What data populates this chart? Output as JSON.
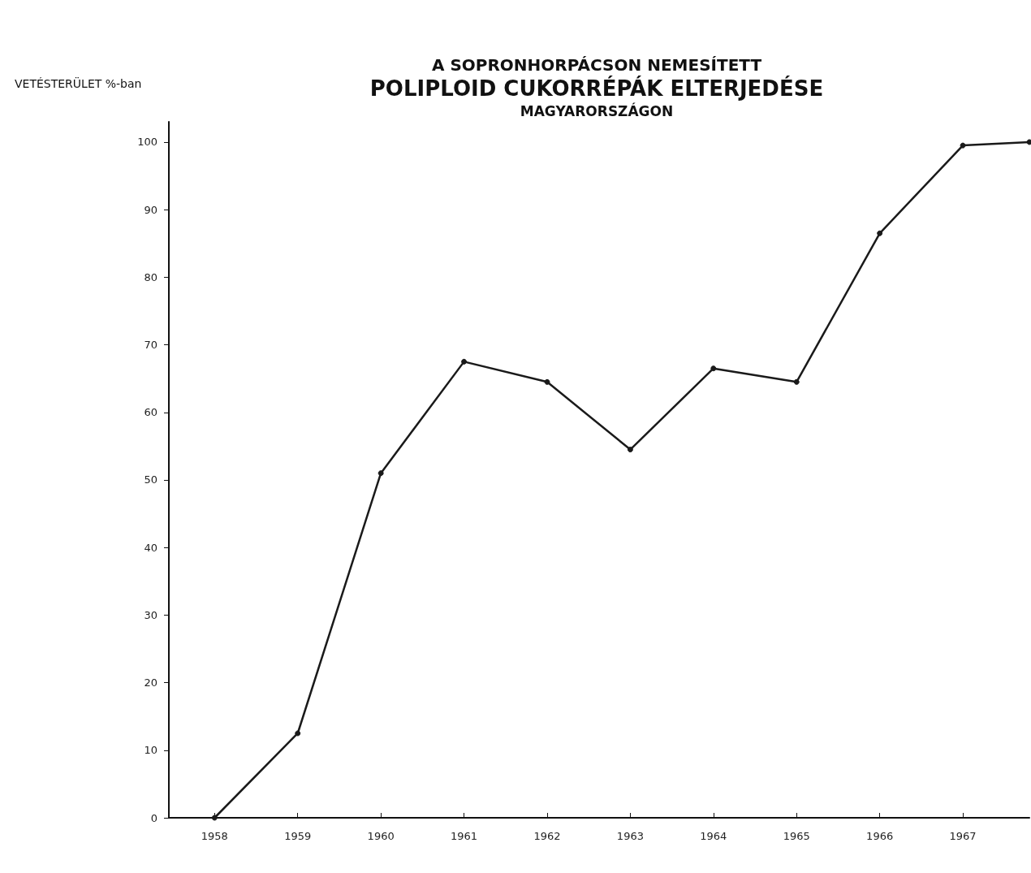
{
  "chart_data": {
    "type": "line",
    "title": "A SOPRONHORPÁCSON NEMESÍTETT\nPOLIPLOID CUKORRÉPÁK ELTERJEDÉSE\nMAGYARORSZÁGON",
    "ylabel": "VETÉSTERÜLET %-ban",
    "x": [
      1958,
      1959,
      1960,
      1961,
      1962,
      1963,
      1964,
      1965,
      1966,
      1967,
      1967.8
    ],
    "series": [
      {
        "color": "#1a1a1a",
        "values": [
          0,
          12.5,
          51,
          67.5,
          64.5,
          54.5,
          66.5,
          64.5,
          86.5,
          99.5,
          100
        ]
      }
    ],
    "xlim": [
      1957.45,
      1967.8
    ],
    "xticks": [
      1958,
      1959,
      1960,
      1961,
      1962,
      1963,
      1964,
      1965,
      1966,
      1967
    ],
    "ylim": [
      0,
      103
    ],
    "yticks": [
      0,
      10,
      20,
      30,
      40,
      50,
      60,
      70,
      80,
      90,
      100
    ],
    "grid": false,
    "marker": "circle",
    "line_style": "solid"
  }
}
